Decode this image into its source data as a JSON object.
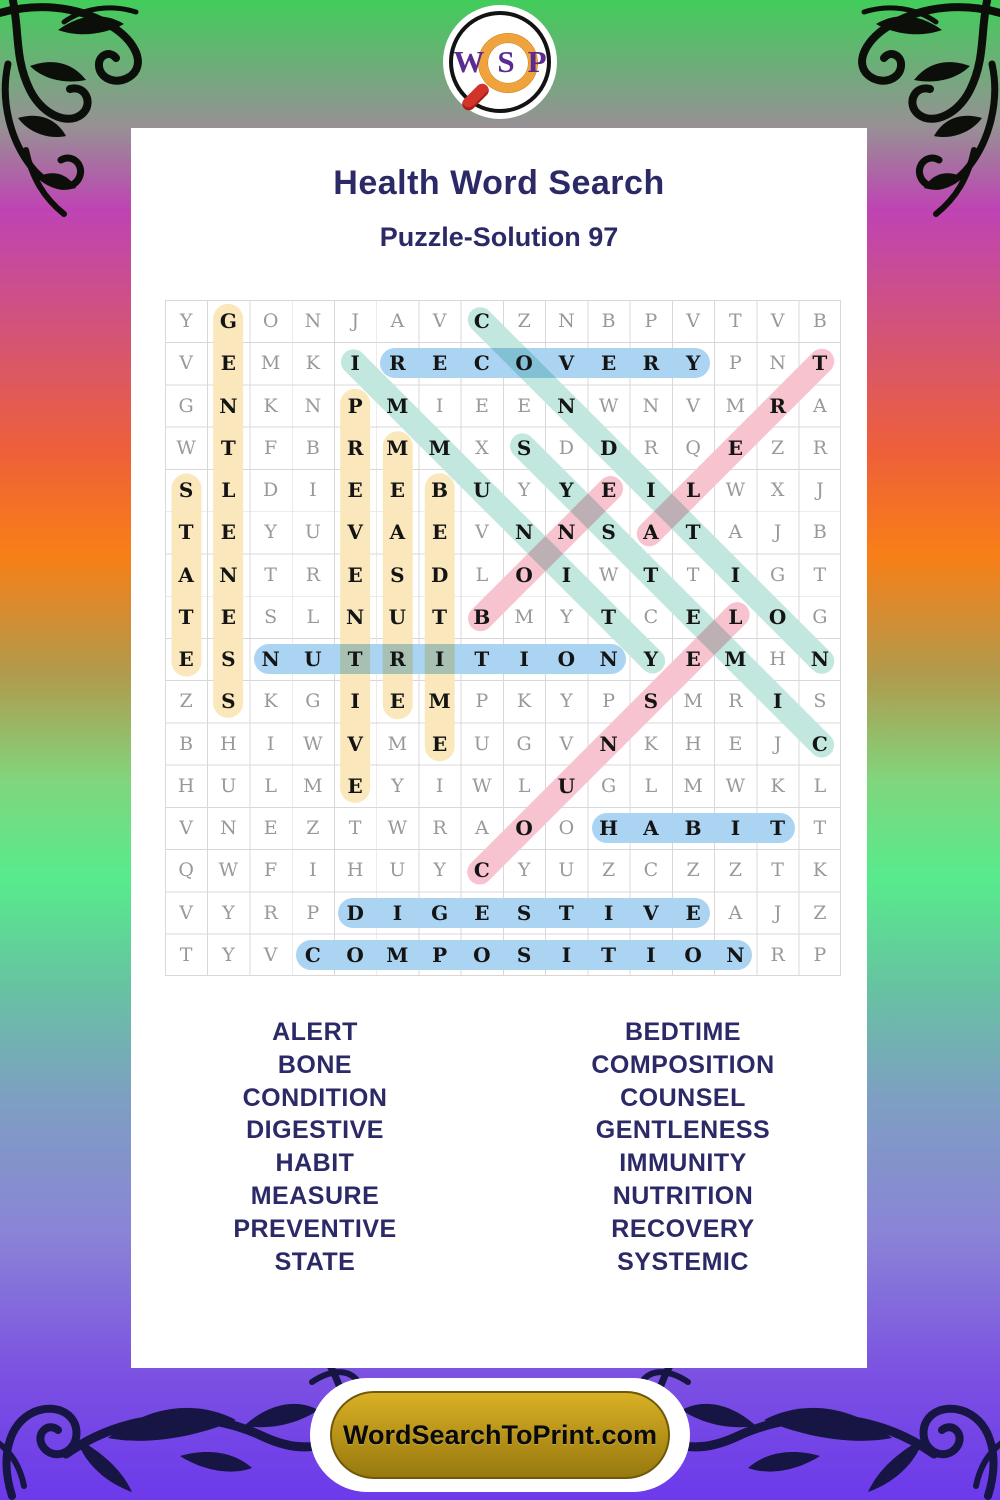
{
  "logo": {
    "letters": [
      "W",
      "S",
      "P"
    ]
  },
  "header": {
    "title": "Health Word Search",
    "subtitle": "Puzzle-Solution 97"
  },
  "puzzle": {
    "rows": [
      "YGONJAVCZNBPVTVB",
      "VEMKIRECOVERYPNT",
      "GNKNPMIEENWNVMRA",
      "WTFBRMMXSDDRQEZR",
      "SLDIEEBUYYEILWXJ",
      "TEYUVAEVNNSATAJB",
      "ANTRESDLOIWTTIGT",
      "TESLNUTBMYTCELOG",
      "ESNUTRITIONYEMHN",
      "ZSKGIEMPKYPSMRIS",
      "BHIWVMEUGVNKHEJC",
      "HULMEYIWLUGLMWKL",
      "VNEZTWRAOOHABITT",
      "QWFIHUYCYUZCZZTK",
      "VYRPDIGESTIVEAJZ",
      "TYVCOMPOSITIONRP"
    ],
    "solutions": [
      {
        "word": "RECOVERY",
        "row": 2,
        "col": 6,
        "dir": "E",
        "color": "blue"
      },
      {
        "word": "NUTRITION",
        "row": 9,
        "col": 3,
        "dir": "E",
        "color": "blue"
      },
      {
        "word": "HABIT",
        "row": 13,
        "col": 11,
        "dir": "E",
        "color": "blue"
      },
      {
        "word": "DIGESTIVE",
        "row": 15,
        "col": 5,
        "dir": "E",
        "color": "blue"
      },
      {
        "word": "COMPOSITION",
        "row": 16,
        "col": 4,
        "dir": "E",
        "color": "blue"
      },
      {
        "word": "STATE",
        "row": 5,
        "col": 1,
        "dir": "S",
        "color": "yellow"
      },
      {
        "word": "GENTLENESS",
        "row": 1,
        "col": 2,
        "dir": "S",
        "color": "yellow"
      },
      {
        "word": "PREVENTIVE",
        "row": 3,
        "col": 5,
        "dir": "S",
        "color": "yellow"
      },
      {
        "word": "MEASURE",
        "row": 4,
        "col": 6,
        "dir": "S",
        "color": "yellow"
      },
      {
        "word": "BEDTIME",
        "row": 5,
        "col": 7,
        "dir": "S",
        "color": "yellow"
      },
      {
        "word": "IMMUNITY",
        "row": 2,
        "col": 5,
        "dir": "SE",
        "color": "teal"
      },
      {
        "word": "CONDITION",
        "row": 1,
        "col": 8,
        "dir": "SE",
        "color": "teal"
      },
      {
        "word": "SYSTEMIC",
        "row": 4,
        "col": 9,
        "dir": "SE",
        "color": "teal"
      },
      {
        "word": "ALERT",
        "row": 6,
        "col": 12,
        "dir": "NE",
        "color": "pink"
      },
      {
        "word": "BONE",
        "row": 8,
        "col": 8,
        "dir": "NE",
        "color": "pink"
      },
      {
        "word": "COUNSEL",
        "row": 14,
        "col": 8,
        "dir": "NE",
        "color": "pink"
      }
    ]
  },
  "word_list": {
    "left": [
      "ALERT",
      "BONE",
      "CONDITION",
      "DIGESTIVE",
      "HABIT",
      "MEASURE",
      "PREVENTIVE",
      "STATE"
    ],
    "right": [
      "BEDTIME",
      "COMPOSITION",
      "COUNSEL",
      "GENTLENESS",
      "IMMUNITY",
      "NUTRITION",
      "RECOVERY",
      "SYSTEMIC"
    ]
  },
  "footer": {
    "site": "WordSearchToPrint.com"
  },
  "colors": {
    "title_text": "#2b2a67",
    "grid_letter": "#999999",
    "grid_letter_solved": "#141414",
    "grid_line": "#d8d8d8",
    "highlight": {
      "blue": "#abd4f2",
      "yellow": "#fbe7bc",
      "teal": "#c2e7df",
      "pink": "#f7c3cf"
    },
    "logo_letter": "#5a2c91",
    "lens_orange": "#f0a23c",
    "handle_red": "#d2342a",
    "button_gold": "#bb961a",
    "ornament_top": "#0b0e09",
    "ornament_bottom": "#161543",
    "background_stops": [
      [
        "#41cd5a",
        "0%"
      ],
      [
        "#979095",
        "8.5%"
      ],
      [
        "#bf43b4",
        "14%"
      ],
      [
        "#d25478",
        "22%"
      ],
      [
        "#ee5f3a",
        "30%"
      ],
      [
        "#f87f17",
        "37%"
      ],
      [
        "#b09b4d",
        "45%"
      ],
      [
        "#81d57d",
        "52%"
      ],
      [
        "#57eb8c",
        "58.5%"
      ],
      [
        "#67c2a2",
        "66%"
      ],
      [
        "#7da0c2",
        "73%"
      ],
      [
        "#8a85d6",
        "82%"
      ],
      [
        "#7b4fe2",
        "92%"
      ],
      [
        "#6c3aeb",
        "100%"
      ]
    ]
  }
}
